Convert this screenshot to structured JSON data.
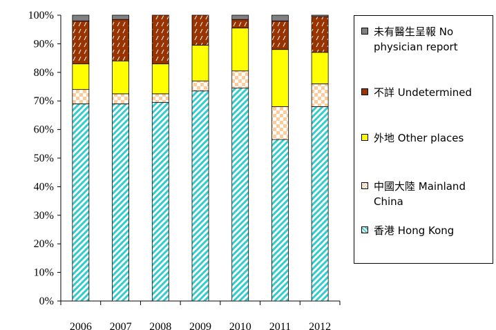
{
  "chart_data": {
    "type": "bar",
    "stacked": true,
    "categories": [
      "2006",
      "2007",
      "2008",
      "2009",
      "2010",
      "2011",
      "2012"
    ],
    "ylim": [
      0,
      100
    ],
    "yticks": [
      "0%",
      "10%",
      "20%",
      "30%",
      "40%",
      "50%",
      "60%",
      "70%",
      "80%",
      "90%",
      "100%"
    ],
    "xlabel": "",
    "ylabel": "",
    "title": "",
    "legend_position": "right",
    "series": [
      {
        "name": "香港 Hong Kong",
        "color": "#33cccc",
        "pattern": "diagonal",
        "values": [
          69,
          69,
          69.5,
          73.5,
          74.5,
          56.5,
          68
        ]
      },
      {
        "name": "中國大陸 Mainland China",
        "color": "#ffcc99",
        "pattern": "checker",
        "values": [
          5,
          3.5,
          3,
          3.5,
          6,
          11.5,
          8
        ]
      },
      {
        "name": "外地 Other places",
        "color": "#ffff00",
        "pattern": "solid",
        "values": [
          9,
          11.5,
          10.5,
          12.5,
          15,
          20,
          11
        ]
      },
      {
        "name": "不詳 Undetermined",
        "color": "#993300",
        "pattern": "dashed",
        "values": [
          15,
          14.5,
          17,
          10.5,
          3,
          10,
          12.5
        ]
      },
      {
        "name": "未有醫生呈報 No physician report",
        "color": "#808080",
        "pattern": "solid",
        "values": [
          2,
          1.5,
          0,
          0,
          1.5,
          2,
          0.5
        ]
      }
    ]
  }
}
